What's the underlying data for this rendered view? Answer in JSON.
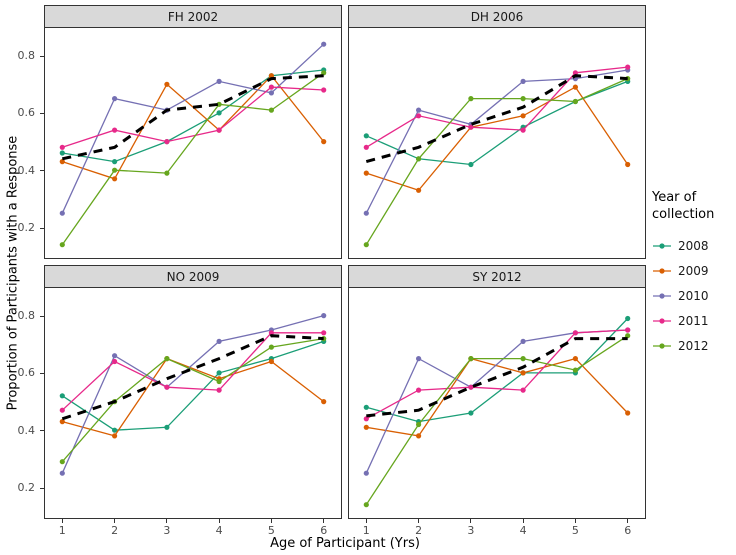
{
  "chart_data": {
    "type": "line",
    "title": "",
    "xlabel": "Age of Participant (Yrs)",
    "ylabel": "Proportion of Participants with a Response",
    "x": [
      1,
      2,
      3,
      4,
      5,
      6
    ],
    "xlim": [
      0.65,
      6.35
    ],
    "ylim": [
      0.09,
      0.9
    ],
    "xticks": [
      1,
      2,
      3,
      4,
      5,
      6
    ],
    "yticks": [
      0.2,
      0.4,
      0.6,
      0.8
    ],
    "ytick_labels": [
      "0.2",
      "0.4",
      "0.6",
      "0.8"
    ],
    "grid": "off",
    "legend": {
      "title": "Year of collection",
      "position": "right",
      "entries": [
        {
          "label": "2008",
          "color": "#1B9E77"
        },
        {
          "label": "2009",
          "color": "#D95F02"
        },
        {
          "label": "2010",
          "color": "#7570B3"
        },
        {
          "label": "2011",
          "color": "#E7298A"
        },
        {
          "label": "2012",
          "color": "#66A61E"
        }
      ]
    },
    "overlay": {
      "name": "overall-trend",
      "style": "dashed",
      "color": "#000000",
      "stroke_width": 3
    },
    "facets": [
      {
        "label": "FH 2002",
        "series": [
          {
            "name": "2008",
            "values": [
              0.46,
              0.43,
              0.5,
              0.6,
              0.73,
              0.75
            ]
          },
          {
            "name": "2009",
            "values": [
              0.43,
              0.37,
              0.7,
              0.54,
              0.73,
              0.5
            ]
          },
          {
            "name": "2010",
            "values": [
              0.25,
              0.65,
              0.61,
              0.71,
              0.67,
              0.84
            ]
          },
          {
            "name": "2011",
            "values": [
              0.48,
              0.54,
              0.5,
              0.54,
              0.69,
              0.68
            ]
          },
          {
            "name": "2012",
            "values": [
              0.14,
              0.4,
              0.39,
              0.63,
              0.61,
              0.74
            ]
          }
        ],
        "mean_dashed": [
          0.44,
          0.48,
          0.61,
          0.63,
          0.72,
          0.73
        ]
      },
      {
        "label": "DH 2006",
        "series": [
          {
            "name": "2008",
            "values": [
              0.52,
              0.44,
              0.42,
              0.55,
              0.64,
              0.71
            ]
          },
          {
            "name": "2009",
            "values": [
              0.39,
              0.33,
              0.55,
              0.59,
              0.69,
              0.42
            ]
          },
          {
            "name": "2010",
            "values": [
              0.25,
              0.61,
              0.56,
              0.71,
              0.72,
              0.75
            ]
          },
          {
            "name": "2011",
            "values": [
              0.48,
              0.59,
              0.55,
              0.54,
              0.74,
              0.76
            ]
          },
          {
            "name": "2012",
            "values": [
              0.14,
              0.44,
              0.65,
              0.65,
              0.64,
              0.72
            ]
          }
        ],
        "mean_dashed": [
          0.43,
          0.48,
          0.56,
          0.62,
          0.73,
          0.72
        ]
      },
      {
        "label": "NO 2009",
        "series": [
          {
            "name": "2008",
            "values": [
              0.52,
              0.4,
              0.41,
              0.6,
              0.65,
              0.71
            ]
          },
          {
            "name": "2009",
            "values": [
              0.43,
              0.38,
              0.65,
              0.58,
              0.64,
              0.5
            ]
          },
          {
            "name": "2010",
            "values": [
              0.25,
              0.66,
              0.55,
              0.71,
              0.75,
              0.8
            ]
          },
          {
            "name": "2011",
            "values": [
              0.47,
              0.64,
              0.55,
              0.54,
              0.74,
              0.74
            ]
          },
          {
            "name": "2012",
            "values": [
              0.29,
              0.5,
              0.65,
              0.57,
              0.69,
              0.72
            ]
          }
        ],
        "mean_dashed": [
          0.44,
          0.5,
          0.58,
          0.65,
          0.73,
          0.72
        ]
      },
      {
        "label": "SY 2012",
        "series": [
          {
            "name": "2008",
            "values": [
              0.48,
              0.43,
              0.46,
              0.6,
              0.6,
              0.79
            ]
          },
          {
            "name": "2009",
            "values": [
              0.41,
              0.38,
              0.65,
              0.6,
              0.65,
              0.46
            ]
          },
          {
            "name": "2010",
            "values": [
              0.25,
              0.65,
              0.55,
              0.71,
              0.74,
              0.75
            ]
          },
          {
            "name": "2011",
            "values": [
              0.44,
              0.54,
              0.55,
              0.54,
              0.74,
              0.75
            ]
          },
          {
            "name": "2012",
            "values": [
              0.14,
              0.42,
              0.65,
              0.65,
              0.61,
              0.73
            ]
          }
        ],
        "mean_dashed": [
          0.45,
          0.47,
          0.55,
          0.62,
          0.72,
          0.72
        ]
      }
    ]
  }
}
